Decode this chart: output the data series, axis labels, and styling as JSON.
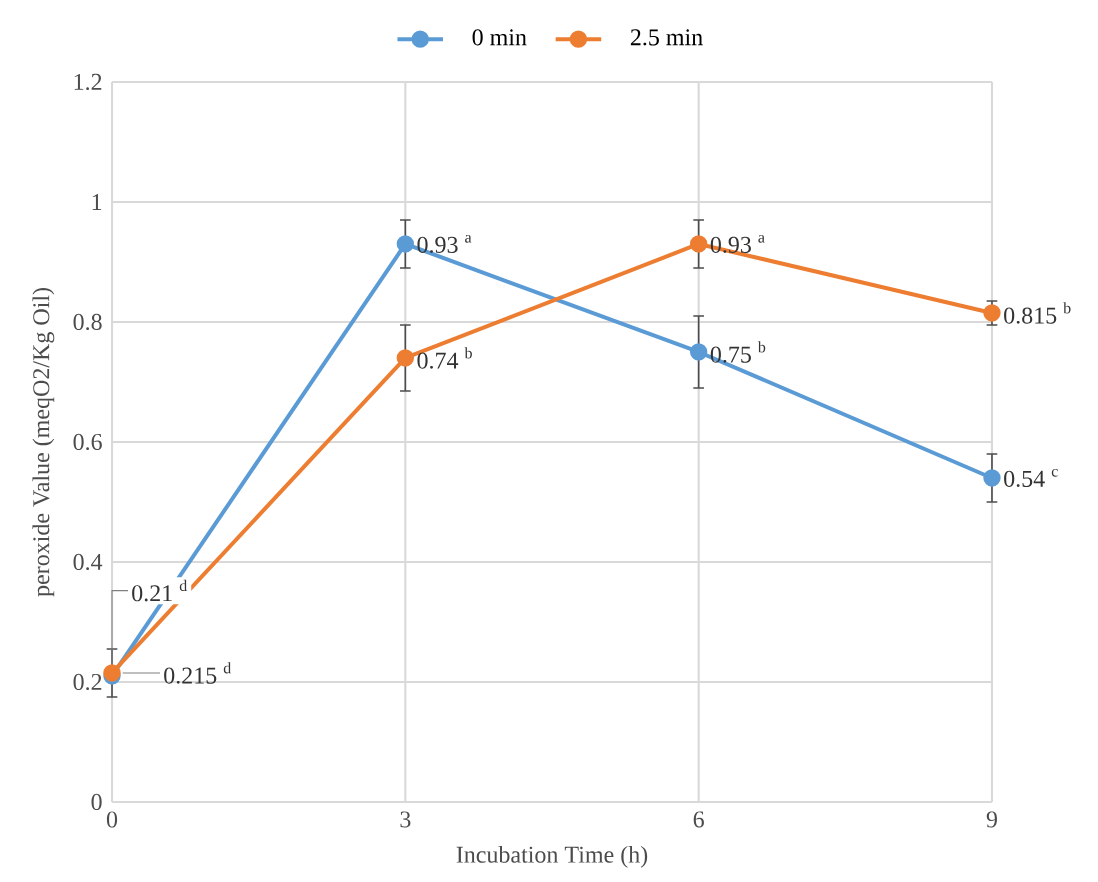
{
  "chart_data": {
    "type": "line",
    "xlabel": "Incubation Time (h)",
    "ylabel": "peroxide Value (meqO2/Kg Oil)",
    "x": [
      0,
      3,
      6,
      9
    ],
    "xlim": [
      0,
      9
    ],
    "xticks": [
      0,
      3,
      6,
      9
    ],
    "ylim": [
      0,
      1.2
    ],
    "yticks": [
      0,
      0.2,
      0.4,
      0.6,
      0.8,
      1,
      1.2
    ],
    "grid": true,
    "legend": "top",
    "marker": "circle",
    "series": [
      {
        "name": "0 min",
        "color": "#5b9bd5",
        "values": [
          0.21,
          0.93,
          0.75,
          0.54
        ],
        "errors": [
          null,
          0.04,
          0.06,
          0.04
        ],
        "value_labels": [
          "0.21 $^{d}$",
          "0.93 $^{a}$",
          "0.75 $^{b}$",
          "0.54 $^{c}$"
        ]
      },
      {
        "name": "2.5 min",
        "color": "#ed7d31",
        "values": [
          0.215,
          0.74,
          0.93,
          0.815
        ],
        "errors": [
          0.04,
          0.055,
          0.04,
          0.02
        ],
        "value_labels": [
          "0.215 $^{d}$",
          "0.74 $^{b}$",
          "0.93 $^{a}$",
          "0.815 $^{b}$"
        ]
      }
    ]
  }
}
